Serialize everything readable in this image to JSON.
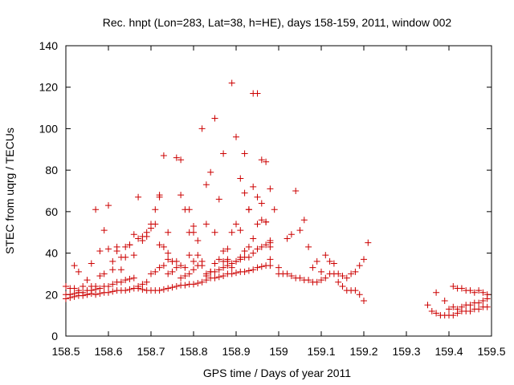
{
  "chart_data": {
    "type": "scatter",
    "title": "Rec. hnpt (Lon=283, Lat=38, h=HE), days 158-159, 2011, window 002",
    "xlabel": "GPS time / Days of year 2011",
    "ylabel": "STEC from uqrg / TECUs",
    "xlim": [
      158.5,
      159.5
    ],
    "ylim": [
      0,
      140
    ],
    "x_ticks": [
      "158.5",
      "158.6",
      "158.7",
      "158.8",
      "158.9",
      "159",
      "159.1",
      "159.2",
      "159.3",
      "159.4",
      "159.5"
    ],
    "y_ticks": [
      "0",
      "20",
      "40",
      "60",
      "80",
      "100",
      "120",
      "140"
    ],
    "marker": "plus",
    "color": "#cc0000",
    "grid": false,
    "series": [
      {
        "x": [
          158.5,
          158.51,
          158.52,
          158.53,
          158.54,
          158.55,
          158.56,
          158.57,
          158.58,
          158.59,
          158.6,
          158.61,
          158.62,
          158.63,
          158.64,
          158.65,
          158.66,
          158.67,
          158.68,
          158.69,
          158.7,
          158.71,
          158.72,
          158.73,
          158.74,
          158.75,
          158.76,
          158.77,
          158.78,
          158.79,
          158.8,
          158.81,
          158.82,
          158.83,
          158.84,
          158.85,
          158.86,
          158.87,
          158.88,
          158.89,
          158.9,
          158.91,
          158.92,
          158.93,
          158.94,
          158.95,
          158.96,
          158.97,
          158.98
        ],
        "y": [
          18,
          18.5,
          19,
          19.5,
          19.5,
          20,
          20.5,
          20,
          20.5,
          21,
          21,
          21.5,
          22,
          22,
          22,
          22.5,
          23,
          23,
          22.5,
          22,
          22,
          22,
          22,
          22.5,
          23,
          23.5,
          24,
          24.5,
          24.5,
          25,
          25,
          25.5,
          26,
          27,
          28,
          28,
          28.5,
          29,
          30,
          30,
          30.5,
          31,
          31,
          31.5,
          32,
          33,
          33.5,
          34,
          34
        ]
      },
      {
        "x": [
          158.5,
          158.51,
          158.52,
          158.53,
          158.54,
          158.55,
          158.56,
          158.57,
          158.58,
          158.59,
          158.6,
          158.61,
          158.62,
          158.63,
          158.64,
          158.65,
          158.66,
          158.67,
          158.68,
          158.69,
          158.7,
          158.71,
          158.72,
          158.73,
          158.74,
          158.75,
          158.76,
          158.77,
          158.78,
          158.79,
          158.8,
          158.81,
          158.82,
          158.83,
          158.84,
          158.85,
          158.86,
          158.87,
          158.88,
          158.89,
          158.9,
          158.91,
          158.92,
          158.93,
          158.94,
          158.95,
          158.96,
          158.97,
          158.98
        ],
        "y": [
          20,
          20,
          20.5,
          21,
          21,
          22,
          22,
          22.5,
          23,
          24,
          24,
          25,
          26,
          26,
          27,
          27.5,
          28,
          24,
          25,
          26,
          30,
          31,
          33,
          34,
          30,
          31,
          33,
          28,
          29,
          30,
          32,
          34,
          36,
          30,
          31,
          31,
          32,
          33,
          34,
          35,
          36,
          37,
          38,
          38,
          40,
          42,
          43,
          44,
          45
        ]
      },
      {
        "x": [
          158.5,
          158.51,
          158.52,
          158.53,
          158.54,
          158.55,
          158.56,
          158.57,
          158.58,
          158.59,
          158.6,
          158.61,
          158.62,
          158.63,
          158.64,
          158.65,
          158.66,
          158.67,
          158.68,
          158.69,
          158.7,
          158.71,
          158.72,
          158.73,
          158.74,
          158.75,
          158.76,
          158.77,
          158.78,
          158.79,
          158.8,
          158.81,
          158.82,
          158.83,
          158.84,
          158.85,
          158.86,
          158.87,
          158.88,
          158.89,
          158.9,
          158.91,
          158.92,
          158.93,
          158.94,
          158.95,
          158.96,
          158.97,
          158.98
        ],
        "y": [
          24,
          23,
          23,
          22,
          24,
          20,
          24,
          24,
          29,
          30,
          42,
          36,
          43,
          38,
          43,
          44,
          49,
          47,
          48,
          50,
          52,
          54,
          44,
          43,
          40,
          36,
          36,
          34,
          33,
          39,
          36,
          39,
          34,
          29,
          31,
          35,
          37,
          36,
          36,
          33,
          36,
          38,
          41,
          43,
          47,
          54,
          56,
          55,
          46
        ]
      },
      {
        "x": [
          158.52,
          158.53,
          158.55,
          158.56,
          158.57,
          158.58,
          158.59,
          158.6,
          158.61,
          158.62,
          158.63,
          158.64,
          158.65,
          158.66,
          158.67,
          158.68,
          158.69,
          158.7,
          158.71,
          158.72,
          158.73,
          158.74,
          158.75,
          158.76,
          158.77,
          158.78,
          158.79,
          158.8,
          158.81,
          158.82,
          158.83,
          158.84,
          158.85,
          158.86,
          158.87,
          158.88,
          158.89,
          158.9,
          158.91,
          158.92,
          158.93,
          158.94,
          158.95,
          158.96,
          158.97,
          158.98
        ],
        "y": [
          34,
          31,
          27,
          35,
          61,
          41,
          51,
          63,
          32,
          41,
          32,
          38,
          44,
          39,
          67,
          46,
          48,
          54,
          61,
          68,
          87,
          37,
          36,
          86,
          85,
          61,
          50,
          50,
          46,
          100,
          54,
          79,
          105,
          66,
          88,
          42,
          122,
          96,
          76,
          69,
          61,
          117,
          117,
          85,
          84,
          71
        ]
      },
      {
        "x": [
          158.72,
          158.74,
          158.77,
          158.79,
          158.8,
          158.83,
          158.85,
          158.87,
          158.88,
          158.89,
          158.9,
          158.91,
          158.92,
          158.93,
          158.94,
          158.95,
          158.96,
          158.97,
          158.98,
          158.99
        ],
        "y": [
          67,
          50,
          68,
          61,
          53,
          73,
          50,
          41,
          37,
          50,
          54,
          51,
          88,
          61,
          72,
          67,
          64,
          55,
          43,
          61
        ]
      },
      {
        "x": [
          158.98,
          159.0,
          159.01,
          159.02,
          159.03,
          159.04,
          159.05,
          159.06,
          159.07,
          159.08,
          159.09,
          159.1,
          159.11,
          159.12,
          159.13,
          159.14,
          159.15,
          159.16,
          159.17,
          159.18,
          159.19,
          159.2,
          159.21
        ],
        "y": [
          37,
          33,
          30,
          30,
          29,
          28,
          28,
          27,
          27,
          26,
          26,
          27,
          28,
          30,
          30,
          30,
          29,
          28,
          30,
          31,
          34,
          37,
          45
        ]
      },
      {
        "x": [
          159.0,
          159.02,
          159.03,
          159.04,
          159.05,
          159.06,
          159.07,
          159.08,
          159.09,
          159.1,
          159.11,
          159.12,
          159.13,
          159.14,
          159.15,
          159.16,
          159.17,
          159.18,
          159.19,
          159.2
        ],
        "y": [
          30,
          47,
          49,
          70,
          51,
          56,
          43,
          33,
          36,
          31,
          39,
          36,
          35,
          26,
          24,
          22,
          22,
          22,
          20,
          17
        ]
      },
      {
        "x": [
          159.35,
          159.36,
          159.37,
          159.38,
          159.39,
          159.4,
          159.41,
          159.42,
          159.43,
          159.44,
          159.45,
          159.46,
          159.47,
          159.48,
          159.49
        ],
        "y": [
          15,
          12,
          11,
          10,
          10,
          10,
          10,
          11,
          12,
          12,
          12,
          13,
          13,
          14,
          14
        ]
      },
      {
        "x": [
          159.37,
          159.39,
          159.4,
          159.41,
          159.42,
          159.43,
          159.44,
          159.45,
          159.46,
          159.47,
          159.48,
          159.49
        ],
        "y": [
          21,
          17,
          13,
          14,
          13,
          14,
          15,
          15,
          16,
          16,
          17,
          18
        ]
      },
      {
        "x": [
          159.41,
          159.42,
          159.43,
          159.44,
          159.45,
          159.46,
          159.47,
          159.48,
          159.49
        ],
        "y": [
          24,
          23,
          23,
          22,
          22,
          21,
          22,
          21,
          20
        ]
      }
    ]
  }
}
